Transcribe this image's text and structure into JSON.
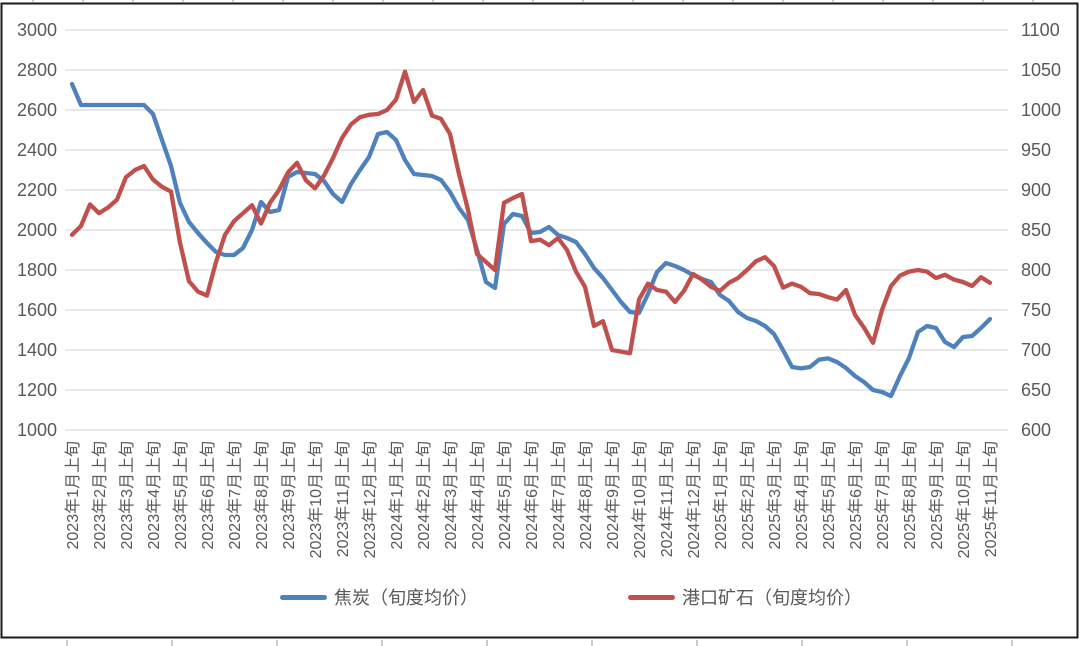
{
  "chart_data": {
    "type": "line",
    "title": "",
    "grid": "horizontal",
    "legend_position": "bottom",
    "points_per_month": 3,
    "x_axis": {
      "tick_labels": [
        "2023年1月上旬",
        "2023年2月上旬",
        "2023年3月上旬",
        "2023年4月上旬",
        "2023年5月上旬",
        "2023年6月上旬",
        "2023年7月上旬",
        "2023年8月上旬",
        "2023年9月上旬",
        "2023年10月上旬",
        "2023年11月上旬",
        "2023年12月上旬",
        "2024年1月上旬",
        "2024年2月上旬",
        "2024年3月上旬",
        "2024年4月上旬",
        "2024年5月上旬",
        "2024年6月上旬",
        "2024年7月上旬",
        "2024年8月上旬",
        "2024年9月上旬",
        "2024年10月上旬",
        "2024年11月上旬",
        "2024年12月上旬",
        "2025年1月上旬",
        "2025年2月上旬",
        "2025年3月上旬",
        "2025年4月上旬",
        "2025年5月上旬",
        "2025年6月上旬",
        "2025年7月上旬",
        "2025年8月上旬",
        "2025年9月上旬",
        "2025年10月上旬",
        "2025年11月上旬"
      ]
    },
    "y_axis_left": {
      "min": 1000,
      "max": 3000,
      "step": 200,
      "ticks": [
        3000,
        2800,
        2600,
        2400,
        2200,
        2000,
        1800,
        1600,
        1400,
        1200,
        1000
      ]
    },
    "y_axis_right": {
      "min": 600,
      "max": 1100,
      "step": 50,
      "ticks": [
        1100,
        1050,
        1000,
        950,
        900,
        850,
        800,
        750,
        700,
        650,
        600
      ]
    },
    "series": [
      {
        "name": "焦炭（旬度均价）",
        "axis": "left",
        "color": "#4F81BD",
        "values": [
          2730,
          2625,
          2625,
          2625,
          2625,
          2625,
          2625,
          2625,
          2625,
          2580,
          2450,
          2320,
          2135,
          2040,
          1985,
          1935,
          1890,
          1875,
          1875,
          1910,
          2000,
          2140,
          2090,
          2100,
          2265,
          2290,
          2285,
          2280,
          2245,
          2180,
          2140,
          2230,
          2300,
          2365,
          2480,
          2490,
          2450,
          2350,
          2280,
          2275,
          2270,
          2250,
          2190,
          2110,
          2050,
          1900,
          1740,
          1710,
          2030,
          2080,
          2070,
          1985,
          1990,
          2015,
          1975,
          1960,
          1940,
          1880,
          1810,
          1760,
          1700,
          1640,
          1590,
          1585,
          1680,
          1790,
          1835,
          1820,
          1800,
          1775,
          1755,
          1740,
          1675,
          1645,
          1590,
          1560,
          1545,
          1520,
          1480,
          1400,
          1315,
          1308,
          1315,
          1352,
          1358,
          1340,
          1310,
          1270,
          1240,
          1200,
          1190,
          1170,
          1270,
          1360,
          1490,
          1520,
          1510,
          1440,
          1415,
          1465,
          1470,
          1510,
          1555
        ]
      },
      {
        "name": "港口矿石（旬度均价）",
        "axis": "right",
        "color": "#C0504D",
        "values": [
          844,
          855,
          882,
          871,
          878,
          888,
          916,
          925,
          930,
          913,
          904,
          898,
          834,
          786,
          773,
          768,
          810,
          844,
          861,
          871,
          881,
          858,
          884,
          900,
          922,
          934,
          912,
          902,
          918,
          940,
          965,
          982,
          991,
          994,
          995,
          1000,
          1013,
          1048,
          1010,
          1025,
          993,
          989,
          970,
          920,
          875,
          820,
          810,
          800,
          884,
          890,
          895,
          836,
          838,
          831,
          840,
          825,
          798,
          779,
          730,
          736,
          700,
          698,
          696,
          763,
          783,
          775,
          773,
          760,
          774,
          795,
          788,
          779,
          774,
          784,
          790,
          800,
          811,
          816,
          805,
          778,
          783,
          779,
          771,
          770,
          766,
          763,
          775,
          744,
          728,
          709,
          750,
          780,
          793,
          798,
          800,
          798,
          790,
          794,
          788,
          785,
          780,
          791,
          784
        ]
      }
    ]
  },
  "colors": {
    "background": "#ffffff",
    "frame": "#1a1a1a",
    "grid": "#d9d9d9",
    "axis_text": "#595959",
    "outer_tick": "#9a9a9a"
  }
}
